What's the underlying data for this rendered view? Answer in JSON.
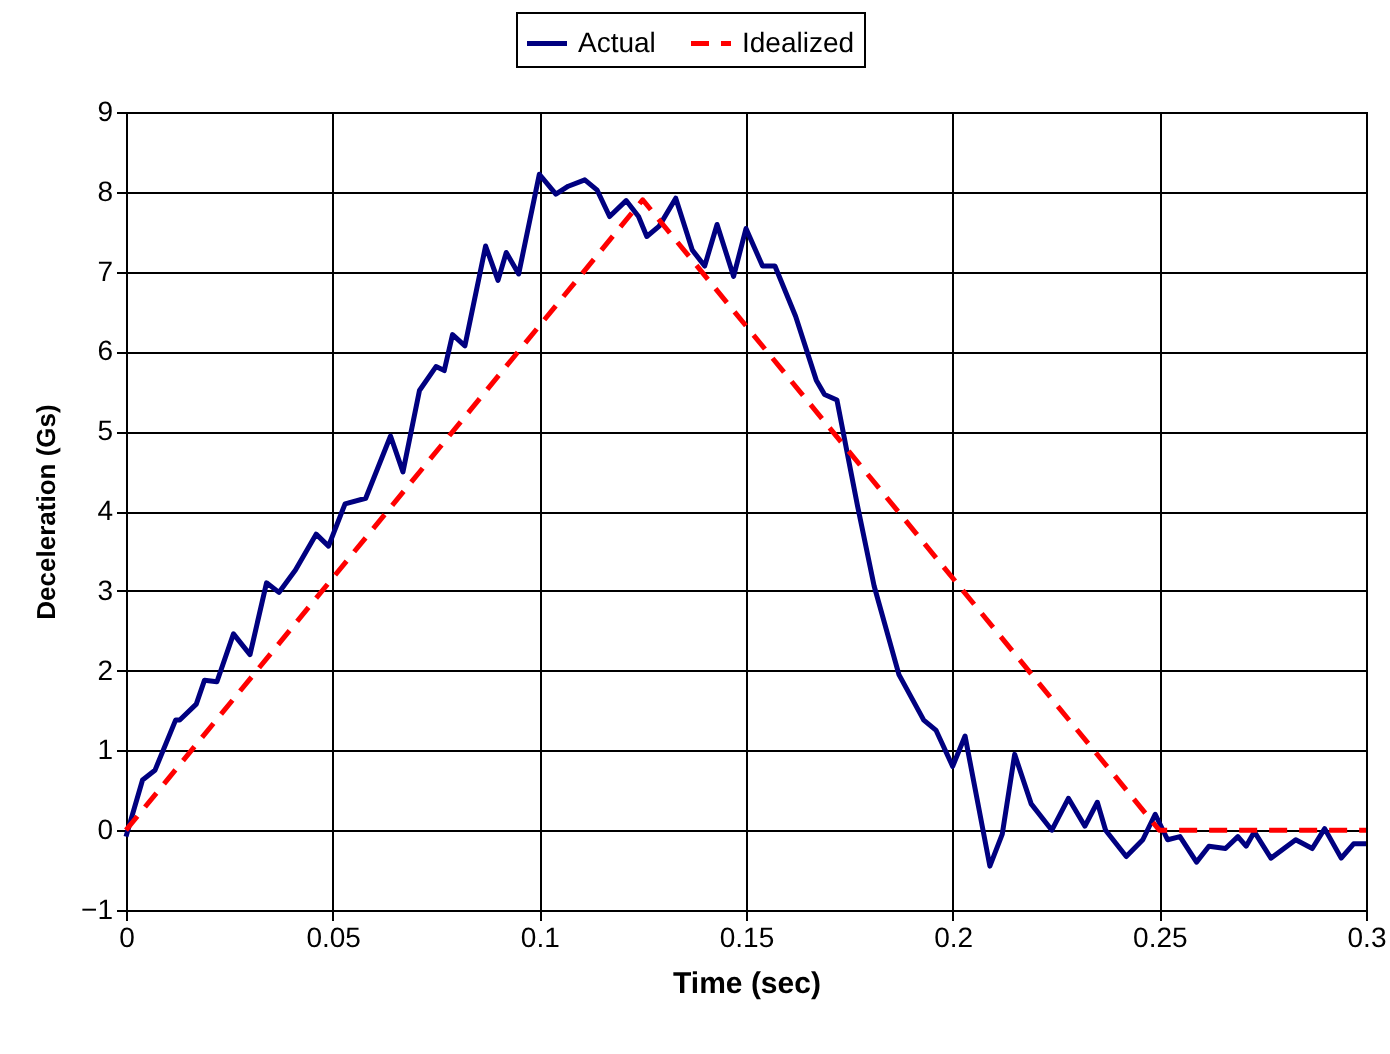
{
  "chart_data": {
    "type": "line",
    "xlabel": "Time (sec)",
    "ylabel": "Deceleration (Gs)",
    "xlim": [
      0,
      0.3
    ],
    "xticks": [
      0,
      0.05,
      0.1,
      0.15,
      0.2,
      0.25,
      0.3
    ],
    "ylim": [
      -1,
      9
    ],
    "yticks": [
      -1,
      0,
      1,
      2,
      3,
      4,
      5,
      6,
      7,
      8,
      9
    ],
    "grid": true,
    "legend": "top",
    "marker": "none",
    "series": [
      {
        "name": "Actual",
        "color": "#000080",
        "line_style": "solid",
        "x": [
          0,
          0.004,
          0.007,
          0.012,
          0.013,
          0.017,
          0.019,
          0.022,
          0.026,
          0.03,
          0.034,
          0.037,
          0.041,
          0.046,
          0.049,
          0.053,
          0.058,
          0.064,
          0.067,
          0.071,
          0.075,
          0.077,
          0.079,
          0.082,
          0.087,
          0.09,
          0.092,
          0.095,
          0.1,
          0.104,
          0.107,
          0.111,
          0.114,
          0.117,
          0.121,
          0.124,
          0.126,
          0.129,
          0.133,
          0.137,
          0.14,
          0.143,
          0.147,
          0.15,
          0.154,
          0.157,
          0.162,
          0.167,
          0.169,
          0.172,
          0.177,
          0.181,
          0.187,
          0.193,
          0.196,
          0.2,
          0.203,
          0.209,
          0.212,
          0.215,
          0.219,
          0.224,
          0.228,
          0.232,
          0.235,
          0.237,
          0.242,
          0.246,
          0.249,
          0.252,
          0.255,
          0.259,
          0.262,
          0.266,
          0.269,
          0.271,
          0.273,
          0.277,
          0.283,
          0.287,
          0.29,
          0.294,
          0.297,
          0.3
        ],
        "values": [
          -0.08,
          0.63,
          0.75,
          1.38,
          1.38,
          1.58,
          1.88,
          1.86,
          2.46,
          2.2,
          3.1,
          2.98,
          3.26,
          3.71,
          3.56,
          4.09,
          4.16,
          4.94,
          4.49,
          5.51,
          5.81,
          5.76,
          6.21,
          6.07,
          7.32,
          6.89,
          7.24,
          6.97,
          8.22,
          7.97,
          8.07,
          8.15,
          8.02,
          7.69,
          7.89,
          7.69,
          7.44,
          7.57,
          7.92,
          7.27,
          7.07,
          7.59,
          6.94,
          7.54,
          7.07,
          7.07,
          6.44,
          5.64,
          5.46,
          5.39,
          4.06,
          3.06,
          1.95,
          1.38,
          1.25,
          0.8,
          1.18,
          -0.45,
          -0.05,
          0.95,
          0.33,
          0,
          0.4,
          0.05,
          0.35,
          0,
          -0.33,
          -0.12,
          0.2,
          -0.12,
          -0.08,
          -0.4,
          -0.2,
          -0.23,
          -0.08,
          -0.2,
          -0.02,
          -0.35,
          -0.12,
          -0.23,
          0.02,
          -0.35,
          -0.17,
          -0.17
        ]
      },
      {
        "name": "Idealized",
        "color": "#ff0000",
        "line_style": "dashed",
        "x": [
          0,
          0.125,
          0.25,
          0.3
        ],
        "values": [
          0,
          7.9,
          0,
          0
        ]
      }
    ]
  }
}
